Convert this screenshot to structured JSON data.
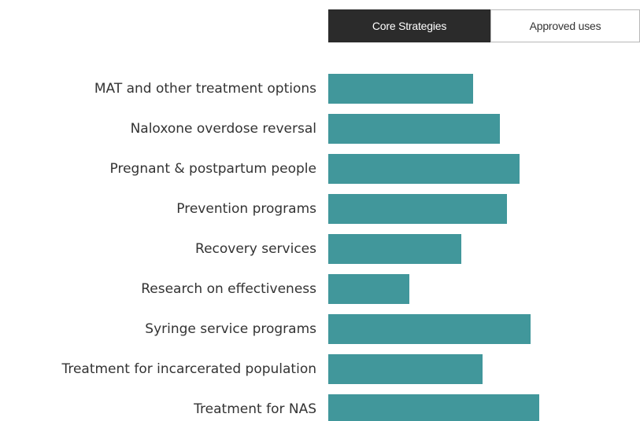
{
  "toggle": {
    "active_label": "Core Strategies",
    "inactive_label": "Approved uses"
  },
  "chart_data": {
    "type": "bar",
    "orientation": "horizontal",
    "categories": [
      "MAT and other treatment options",
      "Naloxone overdose reversal",
      "Pregnant & postpartum people",
      "Prevention programs",
      "Recovery services",
      "Research on effectiveness",
      "Syringe service programs",
      "Treatment for incarcerated population",
      "Treatment for NAS"
    ],
    "values": [
      184,
      218,
      243,
      227,
      169,
      103,
      257,
      196,
      268
    ],
    "xlim": [
      0,
      396
    ],
    "title": "",
    "xlabel": "",
    "ylabel": "",
    "grid": false,
    "legend": "none",
    "bar_color": "#41979b"
  }
}
